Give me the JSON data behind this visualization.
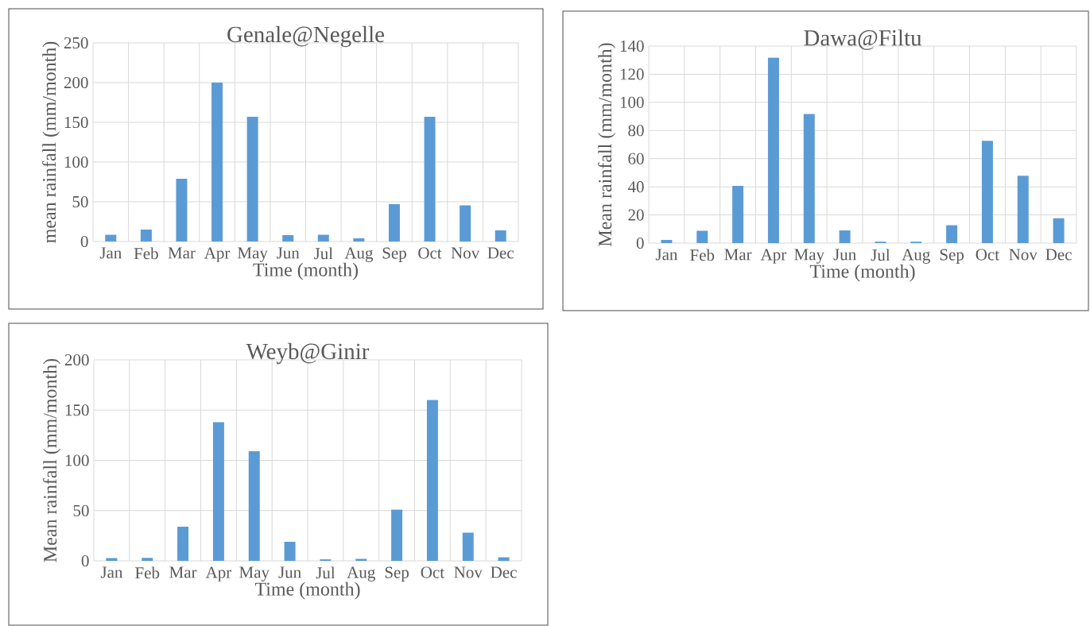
{
  "chart_data": [
    {
      "type": "bar",
      "title": "Genale@Negelle",
      "xlabel": "Time (month)",
      "ylabel": "mean rainfall (mm/month)",
      "categories": [
        "Jan",
        "Feb",
        "Mar",
        "Apr",
        "May",
        "Jun",
        "Jul",
        "Aug",
        "Sep",
        "Oct",
        "Nov",
        "Dec"
      ],
      "values": [
        8.5,
        15,
        79,
        200,
        157,
        8,
        8.5,
        4,
        47,
        157,
        45.5,
        14
      ],
      "color": "#5b9bd5",
      "ylim": [
        0,
        250
      ],
      "yticks": [
        0,
        50,
        100,
        150,
        200,
        250
      ],
      "grid": true
    },
    {
      "type": "bar",
      "title": "Dawa@Filtu",
      "xlabel": "Time (month)",
      "ylabel": "Mean rainfall (mm/month)",
      "categories": [
        "Jan",
        "Feb",
        "Mar",
        "Apr",
        "May",
        "Jun",
        "Jul",
        "Aug",
        "Sep",
        "Oct",
        "Nov",
        "Dec"
      ],
      "values": [
        2.2,
        8.7,
        40.7,
        131.8,
        91.7,
        9,
        1,
        1,
        12.7,
        72.7,
        47.9,
        17.7
      ],
      "color": "#5b9bd5",
      "ylim": [
        0,
        140
      ],
      "yticks": [
        0,
        20,
        40,
        60,
        80,
        100,
        120,
        140
      ],
      "grid": true
    },
    {
      "type": "bar",
      "title": "Weyb@Ginir",
      "xlabel": "Time (month)",
      "ylabel": "Mean rainfall (mm/month)",
      "categories": [
        "Jan",
        "Feb",
        "Mar",
        "Apr",
        "May",
        "Jun",
        "Jul",
        "Aug",
        "Sep",
        "Oct",
        "Nov",
        "Dec"
      ],
      "values": [
        2.7,
        3,
        34,
        138,
        109,
        19,
        1.5,
        2,
        51,
        160,
        28,
        3.5
      ],
      "color": "#5b9bd5",
      "ylim": [
        0,
        200
      ],
      "yticks": [
        0,
        50,
        100,
        150,
        200
      ],
      "grid": true
    }
  ]
}
